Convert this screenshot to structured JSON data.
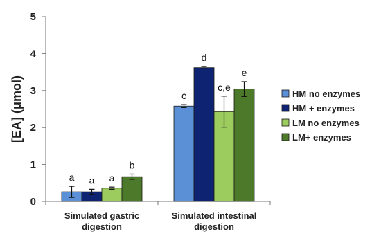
{
  "chart_data": {
    "type": "bar",
    "ylabel": "[EA] (μmol)",
    "xlabel": "",
    "ylim": [
      0,
      5
    ],
    "yticks": [
      "0",
      "1",
      "2",
      "3",
      "4",
      "5"
    ],
    "categories": [
      "Simulated gastric digestion",
      "Simulated intestinal digestion"
    ],
    "category_lines": [
      [
        "Simulated gastric",
        "digestion"
      ],
      [
        "Simulated intestinal",
        "digestion"
      ]
    ],
    "series": [
      {
        "name": "HM no enzymes",
        "color": "#5b8fd6",
        "values": [
          0.26,
          2.58
        ],
        "errors": [
          0.15,
          0.04
        ],
        "sig": [
          "a",
          "c"
        ]
      },
      {
        "name": "HM + enzymes",
        "color": "#0e2472",
        "values": [
          0.26,
          3.62
        ],
        "errors": [
          0.07,
          0.03
        ],
        "sig": [
          "a",
          "d"
        ]
      },
      {
        "name": "LM no enzymes",
        "color": "#9ccb5e",
        "values": [
          0.36,
          2.43
        ],
        "errors": [
          0.03,
          0.42
        ],
        "sig": [
          "a",
          "c,e"
        ]
      },
      {
        "name": "LM+ enzymes",
        "color": "#4d7a2a",
        "values": [
          0.67,
          3.04
        ],
        "errors": [
          0.07,
          0.2
        ],
        "sig": [
          "b",
          "e"
        ]
      }
    ],
    "grid": false,
    "legend_position": "right"
  }
}
